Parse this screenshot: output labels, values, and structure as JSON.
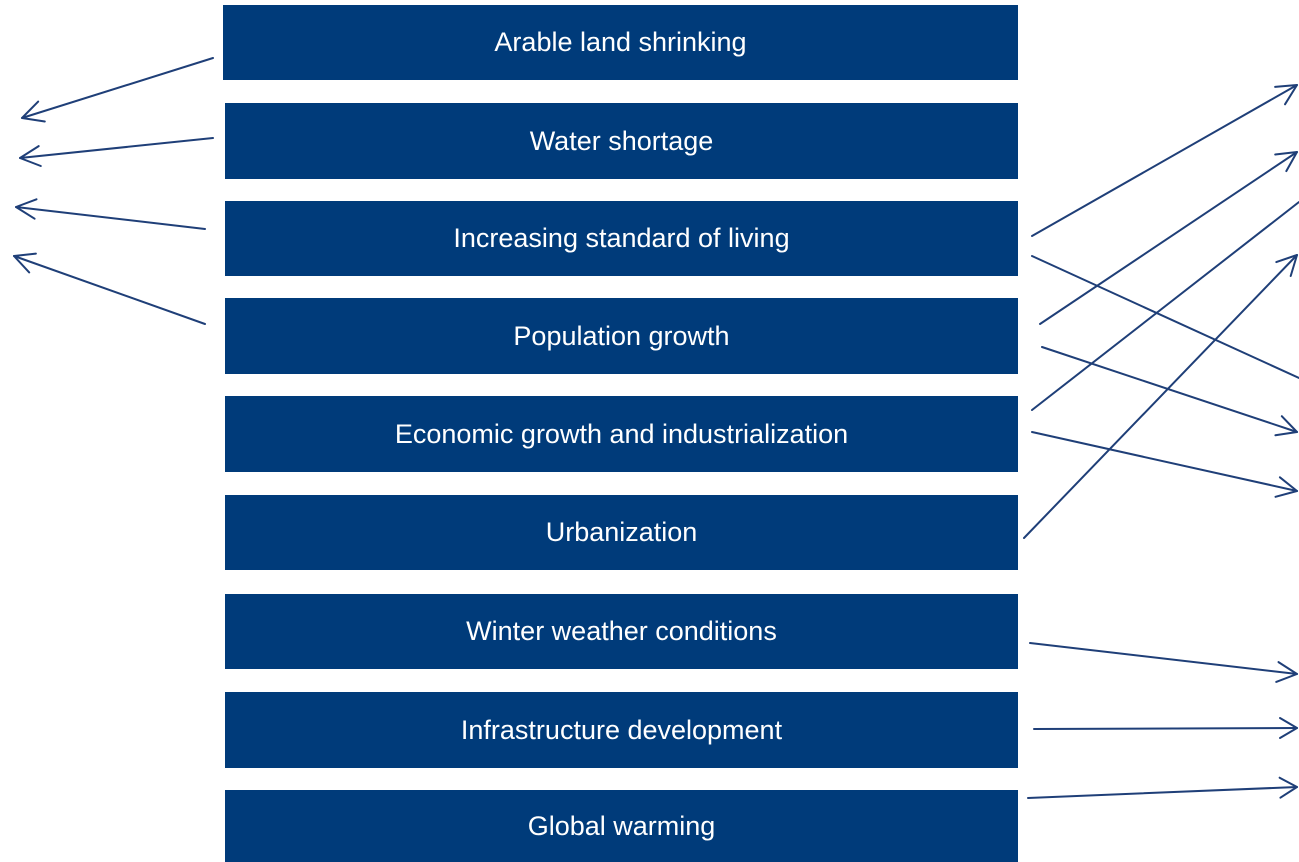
{
  "boxes": [
    {
      "label": "Arable land shrinking"
    },
    {
      "label": "Water shortage"
    },
    {
      "label": "Increasing standard of living"
    },
    {
      "label": "Population growth"
    },
    {
      "label": "Economic growth and industrialization"
    },
    {
      "label": "Urbanization"
    },
    {
      "label": "Winter weather conditions"
    },
    {
      "label": "Infrastructure development"
    },
    {
      "label": "Global warming"
    }
  ],
  "colors": {
    "box_fill": "#003b7a",
    "box_text": "#ffffff",
    "arrow": "#1f3f78",
    "background": "#ffffff"
  }
}
